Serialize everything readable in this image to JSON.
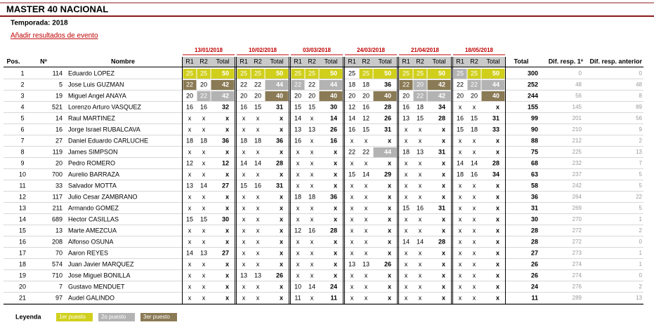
{
  "title": "MASTER 40 NACIONAL",
  "season": "Temporada: 2018",
  "link": "Añadir resultados de evento",
  "columns": {
    "pos": "Pos.",
    "num": "Nº",
    "name": "Nombre",
    "r1": "R1",
    "r2": "R2",
    "total": "Total",
    "overall": "Total",
    "dif1": "Dif. resp. 1º",
    "difprev": "Dif. resp. anterior"
  },
  "events": [
    "13/01/2018",
    "10/02/2018",
    "03/03/2018",
    "24/03/2018",
    "21/04/2018",
    "18/05/2018"
  ],
  "legend": {
    "label": "Leyenda",
    "items": [
      {
        "label": "1er puesto",
        "color": "#d0cf1c"
      },
      {
        "label": "2o puesto",
        "color": "#b3b3b3"
      },
      {
        "label": "3er puesto",
        "color": "#8a7a55"
      }
    ]
  },
  "rows": [
    {
      "pos": 1,
      "num": 114,
      "name": "Eduardo LOPEZ",
      "events": [
        [
          25,
          25,
          50
        ],
        [
          25,
          25,
          50
        ],
        [
          25,
          25,
          50
        ],
        [
          25,
          25,
          50
        ],
        [
          25,
          25,
          50
        ],
        [
          25,
          25,
          50
        ]
      ],
      "total": 300,
      "dif1": 0,
      "difprev": 0,
      "hl": [
        [
          0,
          0,
          0
        ],
        [
          0,
          0,
          0
        ],
        [
          0,
          0,
          0
        ],
        [
          null,
          0,
          0
        ],
        [
          0,
          0,
          0
        ],
        [
          1,
          0,
          0
        ]
      ]
    },
    {
      "pos": 2,
      "num": 5,
      "name": "Jose Luis GUZMAN",
      "events": [
        [
          22,
          20,
          42
        ],
        [
          22,
          22,
          44
        ],
        [
          22,
          22,
          44
        ],
        [
          18,
          18,
          36
        ],
        [
          22,
          20,
          42
        ],
        [
          22,
          22,
          44
        ]
      ],
      "total": 252,
      "dif1": 48,
      "difprev": 48,
      "hl": [
        [
          2,
          null,
          2
        ],
        [
          null,
          null,
          1
        ],
        [
          1,
          null,
          1
        ],
        null,
        [
          2,
          1,
          2
        ],
        [
          null,
          1,
          1
        ]
      ]
    },
    {
      "pos": 3,
      "num": 19,
      "name": "Miguel Angel ANAYA",
      "events": [
        [
          20,
          22,
          42
        ],
        [
          20,
          20,
          40
        ],
        [
          20,
          20,
          40
        ],
        [
          20,
          20,
          40
        ],
        [
          20,
          22,
          42
        ],
        [
          20,
          20,
          40
        ]
      ],
      "total": 244,
      "dif1": 56,
      "difprev": 8,
      "hl": [
        [
          null,
          1,
          1
        ],
        [
          null,
          null,
          2
        ],
        [
          null,
          null,
          2
        ],
        [
          null,
          null,
          2
        ],
        [
          null,
          1,
          1
        ],
        [
          null,
          null,
          2
        ]
      ]
    },
    {
      "pos": 4,
      "num": 521,
      "name": "Lorenzo Arturo VASQUEZ",
      "events": [
        [
          16,
          16,
          32
        ],
        [
          16,
          15,
          31
        ],
        [
          15,
          15,
          30
        ],
        [
          12,
          16,
          28
        ],
        [
          16,
          18,
          34
        ],
        [
          "x",
          "x",
          "x"
        ]
      ],
      "total": 155,
      "dif1": 145,
      "difprev": 89
    },
    {
      "pos": 5,
      "num": 14,
      "name": "Raul MARTINEZ",
      "events": [
        [
          "x",
          "x",
          "x"
        ],
        [
          "x",
          "x",
          "x"
        ],
        [
          14,
          "x",
          14
        ],
        [
          14,
          12,
          26
        ],
        [
          13,
          15,
          28
        ],
        [
          16,
          15,
          31
        ]
      ],
      "total": 99,
      "dif1": 201,
      "difprev": 56
    },
    {
      "pos": 6,
      "num": 16,
      "name": "Jorge Israel RUBALCAVA",
      "events": [
        [
          "x",
          "x",
          "x"
        ],
        [
          "x",
          "x",
          "x"
        ],
        [
          13,
          13,
          26
        ],
        [
          16,
          15,
          31
        ],
        [
          "x",
          "x",
          "x"
        ],
        [
          15,
          18,
          33
        ]
      ],
      "total": 90,
      "dif1": 210,
      "difprev": 9
    },
    {
      "pos": 7,
      "num": 27,
      "name": "Daniel Eduardo CARLUCHE",
      "events": [
        [
          18,
          18,
          36
        ],
        [
          18,
          18,
          36
        ],
        [
          16,
          "x",
          16
        ],
        [
          "x",
          "x",
          "x"
        ],
        [
          "x",
          "x",
          "x"
        ],
        [
          "x",
          "x",
          "x"
        ]
      ],
      "total": 88,
      "dif1": 212,
      "difprev": 2
    },
    {
      "pos": 8,
      "num": 119,
      "name": "James SIMPSON",
      "events": [
        [
          "x",
          "x",
          "x"
        ],
        [
          "x",
          "x",
          "x"
        ],
        [
          "x",
          "x",
          "x"
        ],
        [
          22,
          22,
          44
        ],
        [
          18,
          13,
          31
        ],
        [
          "x",
          "x",
          "x"
        ]
      ],
      "total": 75,
      "dif1": 225,
      "difprev": 13,
      "hl": [
        null,
        null,
        null,
        [
          null,
          null,
          1
        ],
        null,
        null
      ]
    },
    {
      "pos": 9,
      "num": 20,
      "name": "Pedro ROMERO",
      "events": [
        [
          12,
          "x",
          12
        ],
        [
          14,
          14,
          28
        ],
        [
          "x",
          "x",
          "x"
        ],
        [
          "x",
          "x",
          "x"
        ],
        [
          "x",
          "x",
          "x"
        ],
        [
          14,
          14,
          28
        ]
      ],
      "total": 68,
      "dif1": 232,
      "difprev": 7
    },
    {
      "pos": 10,
      "num": 700,
      "name": "Aurelio BARRAZA",
      "events": [
        [
          "x",
          "x",
          "x"
        ],
        [
          "x",
          "x",
          "x"
        ],
        [
          "x",
          "x",
          "x"
        ],
        [
          15,
          14,
          29
        ],
        [
          "x",
          "x",
          "x"
        ],
        [
          18,
          16,
          34
        ]
      ],
      "total": 63,
      "dif1": 237,
      "difprev": 5
    },
    {
      "pos": 11,
      "num": 33,
      "name": "Salvador MOTTA",
      "events": [
        [
          13,
          14,
          27
        ],
        [
          15,
          16,
          31
        ],
        [
          "x",
          "x",
          "x"
        ],
        [
          "x",
          "x",
          "x"
        ],
        [
          "x",
          "x",
          "x"
        ],
        [
          "x",
          "x",
          "x"
        ]
      ],
      "total": 58,
      "dif1": 242,
      "difprev": 5
    },
    {
      "pos": 12,
      "num": 117,
      "name": "Julio Cesar ZAMBRANO",
      "events": [
        [
          "x",
          "x",
          "x"
        ],
        [
          "x",
          "x",
          "x"
        ],
        [
          18,
          18,
          36
        ],
        [
          "x",
          "x",
          "x"
        ],
        [
          "x",
          "x",
          "x"
        ],
        [
          "x",
          "x",
          "x"
        ]
      ],
      "total": 36,
      "dif1": 264,
      "difprev": 22
    },
    {
      "pos": 13,
      "num": 211,
      "name": "Armando GOMEZ",
      "events": [
        [
          "x",
          "x",
          "x"
        ],
        [
          "x",
          "x",
          "x"
        ],
        [
          "x",
          "x",
          "x"
        ],
        [
          "x",
          "x",
          "x"
        ],
        [
          15,
          16,
          31
        ],
        [
          "x",
          "x",
          "x"
        ]
      ],
      "total": 31,
      "dif1": 269,
      "difprev": 5
    },
    {
      "pos": 14,
      "num": 689,
      "name": "Hector CASILLAS",
      "events": [
        [
          15,
          15,
          30
        ],
        [
          "x",
          "x",
          "x"
        ],
        [
          "x",
          "x",
          "x"
        ],
        [
          "x",
          "x",
          "x"
        ],
        [
          "x",
          "x",
          "x"
        ],
        [
          "x",
          "x",
          "x"
        ]
      ],
      "total": 30,
      "dif1": 270,
      "difprev": 1
    },
    {
      "pos": 15,
      "num": 13,
      "name": "Marte AMEZCUA",
      "events": [
        [
          "x",
          "x",
          "x"
        ],
        [
          "x",
          "x",
          "x"
        ],
        [
          12,
          16,
          28
        ],
        [
          "x",
          "x",
          "x"
        ],
        [
          "x",
          "x",
          "x"
        ],
        [
          "x",
          "x",
          "x"
        ]
      ],
      "total": 28,
      "dif1": 272,
      "difprev": 2
    },
    {
      "pos": 16,
      "num": 208,
      "name": "Alfonso OSUNA",
      "events": [
        [
          "x",
          "x",
          "x"
        ],
        [
          "x",
          "x",
          "x"
        ],
        [
          "x",
          "x",
          "x"
        ],
        [
          "x",
          "x",
          "x"
        ],
        [
          14,
          14,
          28
        ],
        [
          "x",
          "x",
          "x"
        ]
      ],
      "total": 28,
      "dif1": 272,
      "difprev": 0
    },
    {
      "pos": 17,
      "num": 70,
      "name": "Aaron REYES",
      "events": [
        [
          14,
          13,
          27
        ],
        [
          "x",
          "x",
          "x"
        ],
        [
          "x",
          "x",
          "x"
        ],
        [
          "x",
          "x",
          "x"
        ],
        [
          "x",
          "x",
          "x"
        ],
        [
          "x",
          "x",
          "x"
        ]
      ],
      "total": 27,
      "dif1": 273,
      "difprev": 1
    },
    {
      "pos": 18,
      "num": 574,
      "name": "Juan Javier MARQUEZ",
      "events": [
        [
          "x",
          "x",
          "x"
        ],
        [
          "x",
          "x",
          "x"
        ],
        [
          "x",
          "x",
          "x"
        ],
        [
          13,
          13,
          26
        ],
        [
          "x",
          "x",
          "x"
        ],
        [
          "x",
          "x",
          "x"
        ]
      ],
      "total": 26,
      "dif1": 274,
      "difprev": 1
    },
    {
      "pos": 19,
      "num": 710,
      "name": "Jose Miguel BONILLA",
      "events": [
        [
          "x",
          "x",
          "x"
        ],
        [
          13,
          13,
          26
        ],
        [
          "x",
          "x",
          "x"
        ],
        [
          "x",
          "x",
          "x"
        ],
        [
          "x",
          "x",
          "x"
        ],
        [
          "x",
          "x",
          "x"
        ]
      ],
      "total": 26,
      "dif1": 274,
      "difprev": 0
    },
    {
      "pos": 20,
      "num": 7,
      "name": "Gustavo MENDUET",
      "events": [
        [
          "x",
          "x",
          "x"
        ],
        [
          "x",
          "x",
          "x"
        ],
        [
          10,
          14,
          24
        ],
        [
          "x",
          "x",
          "x"
        ],
        [
          "x",
          "x",
          "x"
        ],
        [
          "x",
          "x",
          "x"
        ]
      ],
      "total": 24,
      "dif1": 276,
      "difprev": 2
    },
    {
      "pos": 21,
      "num": 97,
      "name": "Audel GALINDO",
      "events": [
        [
          "x",
          "x",
          "x"
        ],
        [
          "x",
          "x",
          "x"
        ],
        [
          11,
          "x",
          11
        ],
        [
          "x",
          "x",
          "x"
        ],
        [
          "x",
          "x",
          "x"
        ],
        [
          "x",
          "x",
          "x"
        ]
      ],
      "total": 11,
      "dif1": 289,
      "difprev": 13
    }
  ]
}
